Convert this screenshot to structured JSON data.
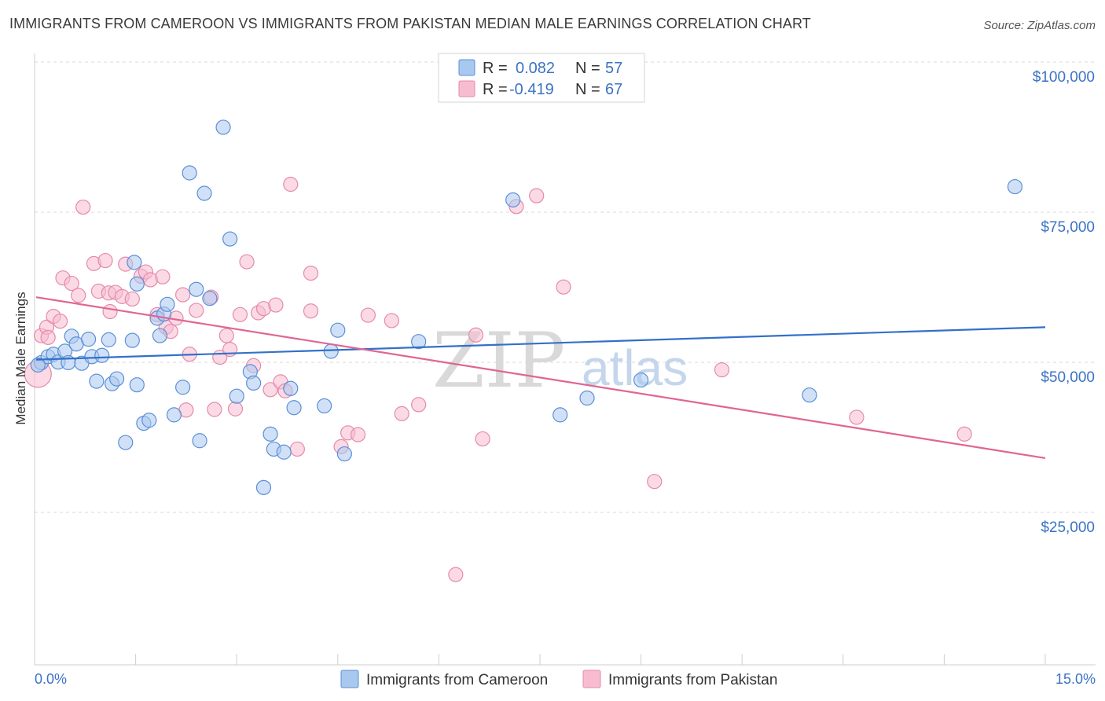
{
  "title": "IMMIGRANTS FROM CAMEROON VS IMMIGRANTS FROM PAKISTAN MEDIAN MALE EARNINGS CORRELATION CHART",
  "source": "Source: ZipAtlas.com",
  "watermark": {
    "part1": "ZIP",
    "part2": "atlas"
  },
  "legend": {
    "r_label": "R =",
    "n_label": "N =",
    "rows": [
      {
        "r": "0.082",
        "n": "57",
        "color": "#a9c8f0",
        "stroke": "#5b8fd6"
      },
      {
        "r": "-0.419",
        "n": "67",
        "color": "#f7bcd0",
        "stroke": "#e58aab"
      }
    ]
  },
  "chart_data": {
    "type": "scatter",
    "title": "IMMIGRANTS FROM CAMEROON VS IMMIGRANTS FROM PAKISTAN MEDIAN MALE EARNINGS CORRELATION CHART",
    "xlabel": "",
    "ylabel": "Median Male Earnings",
    "xlim": [
      0,
      15
    ],
    "ylim": [
      0,
      105000
    ],
    "x_tick_labels": [
      "0.0%",
      "15.0%"
    ],
    "y_tick_labels": [
      "$25,000",
      "$50,000",
      "$75,000",
      "$100,000"
    ],
    "y_tick_values": [
      25000,
      50000,
      75000,
      100000
    ],
    "grid": "horizontal dashed",
    "legend_position": "top-center",
    "series": [
      {
        "name": "Immigrants from Cameroon",
        "color": "#a9c8f0",
        "stroke": "#5b8fd6",
        "line_color": "#3370c9",
        "trend": [
          [
            0,
            52800
          ],
          [
            15,
            58200
          ]
        ],
        "points": [
          [
            0.1,
            52300
          ],
          [
            0.2,
            53300
          ],
          [
            0.28,
            53700
          ],
          [
            0.35,
            52400
          ],
          [
            0.45,
            54200
          ],
          [
            0.5,
            52300
          ],
          [
            0.55,
            56700
          ],
          [
            0.62,
            55400
          ],
          [
            0.7,
            52200
          ],
          [
            0.8,
            56200
          ],
          [
            0.85,
            53300
          ],
          [
            0.92,
            49200
          ],
          [
            1.0,
            53500
          ],
          [
            1.1,
            56100
          ],
          [
            1.15,
            48800
          ],
          [
            1.22,
            49600
          ],
          [
            1.35,
            39000
          ],
          [
            1.45,
            56000
          ],
          [
            1.48,
            69000
          ],
          [
            1.52,
            48600
          ],
          [
            1.62,
            42200
          ],
          [
            1.7,
            42700
          ],
          [
            1.82,
            59700
          ],
          [
            1.86,
            56800
          ],
          [
            1.92,
            60400
          ],
          [
            1.97,
            62000
          ],
          [
            2.07,
            43600
          ],
          [
            2.2,
            48200
          ],
          [
            2.3,
            83900
          ],
          [
            2.4,
            64500
          ],
          [
            2.45,
            39300
          ],
          [
            2.52,
            80500
          ],
          [
            2.6,
            63000
          ],
          [
            2.8,
            91500
          ],
          [
            2.9,
            72900
          ],
          [
            3.0,
            46700
          ],
          [
            3.2,
            50800
          ],
          [
            3.25,
            48900
          ],
          [
            3.4,
            31500
          ],
          [
            3.5,
            40400
          ],
          [
            3.55,
            37900
          ],
          [
            3.7,
            37400
          ],
          [
            3.8,
            48000
          ],
          [
            3.85,
            44800
          ],
          [
            4.3,
            45100
          ],
          [
            4.4,
            54200
          ],
          [
            4.5,
            57700
          ],
          [
            4.6,
            37100
          ],
          [
            5.7,
            55800
          ],
          [
            7.1,
            79400
          ],
          [
            7.8,
            43600
          ],
          [
            8.2,
            46400
          ],
          [
            9.0,
            49400
          ],
          [
            11.5,
            46900
          ],
          [
            14.55,
            81600
          ],
          [
            0.05,
            51900
          ],
          [
            1.52,
            65400
          ]
        ]
      },
      {
        "name": "Immigrants from Pakistan",
        "color": "#f7bcd0",
        "stroke": "#e58aab",
        "line_color": "#e06592",
        "trend": [
          [
            0,
            63200
          ],
          [
            15,
            36400
          ]
        ],
        "points": [
          [
            0.05,
            50400
          ],
          [
            0.1,
            56800
          ],
          [
            0.18,
            58200
          ],
          [
            0.28,
            60000
          ],
          [
            0.38,
            59200
          ],
          [
            0.42,
            66400
          ],
          [
            0.55,
            65500
          ],
          [
            0.65,
            63500
          ],
          [
            0.72,
            78200
          ],
          [
            0.88,
            68800
          ],
          [
            0.95,
            64200
          ],
          [
            1.05,
            69300
          ],
          [
            1.1,
            63900
          ],
          [
            1.12,
            60800
          ],
          [
            1.2,
            64000
          ],
          [
            1.3,
            63300
          ],
          [
            1.35,
            68700
          ],
          [
            1.45,
            62900
          ],
          [
            1.58,
            66700
          ],
          [
            1.65,
            67400
          ],
          [
            1.72,
            66100
          ],
          [
            1.82,
            60300
          ],
          [
            1.9,
            66600
          ],
          [
            1.95,
            58200
          ],
          [
            2.02,
            57500
          ],
          [
            2.1,
            59700
          ],
          [
            2.2,
            63600
          ],
          [
            2.25,
            44400
          ],
          [
            2.3,
            53700
          ],
          [
            2.4,
            61000
          ],
          [
            2.62,
            63200
          ],
          [
            2.67,
            44500
          ],
          [
            2.75,
            53200
          ],
          [
            2.85,
            56800
          ],
          [
            2.9,
            54500
          ],
          [
            2.98,
            44600
          ],
          [
            3.05,
            60300
          ],
          [
            3.15,
            69100
          ],
          [
            3.25,
            51800
          ],
          [
            3.32,
            60600
          ],
          [
            3.4,
            61300
          ],
          [
            3.5,
            47800
          ],
          [
            3.58,
            61900
          ],
          [
            3.65,
            49100
          ],
          [
            3.72,
            47600
          ],
          [
            3.8,
            82000
          ],
          [
            3.9,
            37900
          ],
          [
            4.1,
            67200
          ],
          [
            4.1,
            60900
          ],
          [
            4.55,
            38300
          ],
          [
            4.65,
            40600
          ],
          [
            4.8,
            40300
          ],
          [
            4.95,
            60200
          ],
          [
            5.3,
            59300
          ],
          [
            5.45,
            43800
          ],
          [
            5.7,
            45300
          ],
          [
            6.25,
            17000
          ],
          [
            6.55,
            56900
          ],
          [
            6.65,
            39600
          ],
          [
            7.15,
            78300
          ],
          [
            7.45,
            80100
          ],
          [
            7.85,
            64900
          ],
          [
            9.2,
            32500
          ],
          [
            10.2,
            51100
          ],
          [
            12.2,
            43200
          ],
          [
            13.8,
            40400
          ],
          [
            0.2,
            56500
          ]
        ]
      }
    ]
  }
}
